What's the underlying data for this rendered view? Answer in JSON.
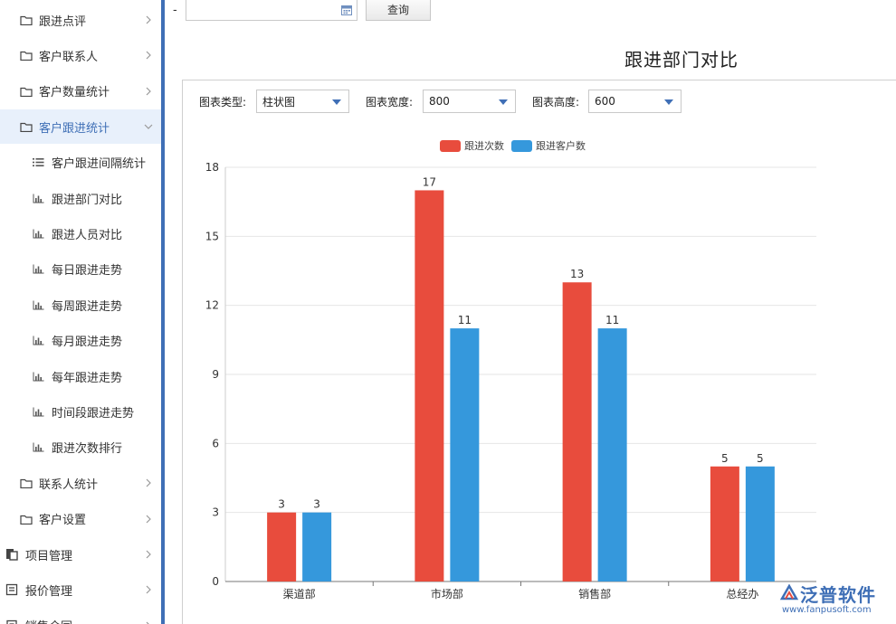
{
  "sidebar": {
    "items": [
      {
        "label": "跟进点评",
        "icon": "folder-icon",
        "type": "group",
        "chevron": "right"
      },
      {
        "label": "客户联系人",
        "icon": "folder-icon",
        "type": "group",
        "chevron": "right"
      },
      {
        "label": "客户数量统计",
        "icon": "folder-icon",
        "type": "group",
        "chevron": "right"
      },
      {
        "label": "客户跟进统计",
        "icon": "folder-icon",
        "type": "group",
        "chevron": "down",
        "active": true
      },
      {
        "label": "客户跟进间隔统计",
        "icon": "list-icon",
        "type": "sub"
      },
      {
        "label": "跟进部门对比",
        "icon": "bar-chart-icon",
        "type": "sub"
      },
      {
        "label": "跟进人员对比",
        "icon": "bar-chart-icon",
        "type": "sub"
      },
      {
        "label": "每日跟进走势",
        "icon": "bar-chart-icon",
        "type": "sub"
      },
      {
        "label": "每周跟进走势",
        "icon": "bar-chart-icon",
        "type": "sub"
      },
      {
        "label": "每月跟进走势",
        "icon": "bar-chart-icon",
        "type": "sub"
      },
      {
        "label": "每年跟进走势",
        "icon": "bar-chart-icon",
        "type": "sub"
      },
      {
        "label": "时间段跟进走势",
        "icon": "bar-chart-icon",
        "type": "sub"
      },
      {
        "label": "跟进次数排行",
        "icon": "bar-chart-icon",
        "type": "sub"
      },
      {
        "label": "联系人统计",
        "icon": "folder-icon",
        "type": "group",
        "chevron": "right"
      },
      {
        "label": "客户设置",
        "icon": "folder-icon",
        "type": "group",
        "chevron": "right"
      },
      {
        "label": "项目管理",
        "icon": "project-icon",
        "type": "top",
        "chevron": "right"
      },
      {
        "label": "报价管理",
        "icon": "quote-icon",
        "type": "top",
        "chevron": "right"
      },
      {
        "label": "销售合同",
        "icon": "contract-icon",
        "type": "top",
        "chevron": "right"
      }
    ]
  },
  "filter": {
    "separator": "-",
    "date_value": "",
    "query_label": "查询"
  },
  "page_title": "跟进部门对比",
  "controls": {
    "chart_type_label": "图表类型:",
    "chart_type_value": "柱状图",
    "width_label": "图表宽度:",
    "width_value": "800",
    "height_label": "图表高度:",
    "height_value": "600"
  },
  "colors": {
    "accent": "#3f6fb6",
    "series1": "#e84c3d",
    "series2": "#3598dc"
  },
  "chart_data": {
    "type": "bar",
    "categories": [
      "渠道部",
      "市场部",
      "销售部",
      "总经办"
    ],
    "series": [
      {
        "name": "跟进次数",
        "values": [
          3,
          17,
          13,
          5
        ],
        "color": "#e84c3d"
      },
      {
        "name": "跟进客户数",
        "values": [
          3,
          11,
          11,
          5
        ],
        "color": "#3598dc"
      }
    ],
    "ylim": [
      0,
      18
    ],
    "yticks": [
      0,
      3,
      6,
      9,
      12,
      15,
      18
    ],
    "grid": true,
    "legend": "top-center",
    "data_labels": true
  },
  "watermark": {
    "name": "泛普软件",
    "url": "www.fanpusoft.com"
  }
}
